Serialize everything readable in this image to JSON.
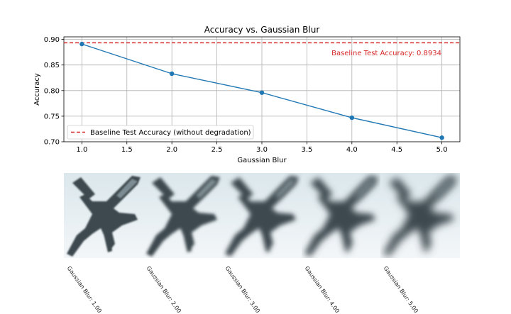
{
  "chart_data": {
    "type": "line",
    "title": "Accuracy vs. Gaussian Blur",
    "xlabel": "Gaussian Blur",
    "ylabel": "Accuracy",
    "xlim": [
      0.8,
      5.2
    ],
    "ylim": [
      0.7,
      0.905
    ],
    "xticks": [
      "1.0",
      "1.5",
      "2.0",
      "2.5",
      "3.0",
      "3.5",
      "4.0",
      "4.5",
      "5.0"
    ],
    "yticks": [
      "0.70",
      "0.75",
      "0.80",
      "0.85",
      "0.90"
    ],
    "grid": true,
    "legend_placement": "lower-left",
    "series": [
      {
        "x": [
          1,
          2,
          3,
          4,
          5
        ],
        "y": [
          0.891,
          0.833,
          0.796,
          0.747,
          0.708
        ],
        "color": "#1f77b4"
      }
    ],
    "baseline": {
      "value": 0.8934,
      "color": "#d62728",
      "legend_label": "Baseline Test Accuracy (without degradation)",
      "annotation": "Baseline Test Accuracy: 0.8934"
    }
  },
  "thumbnails": [
    {
      "caption": "Gaussian Blur: 1.00",
      "blur": 1.0
    },
    {
      "caption": "Gaussian Blur: 2.00",
      "blur": 2.0
    },
    {
      "caption": "Gaussian Blur: 3.00",
      "blur": 3.0
    },
    {
      "caption": "Gaussian Blur: 4.00",
      "blur": 4.0
    },
    {
      "caption": "Gaussian Blur: 5.00",
      "blur": 5.0
    }
  ],
  "thumbnail_subject": "airplane-silhouette"
}
